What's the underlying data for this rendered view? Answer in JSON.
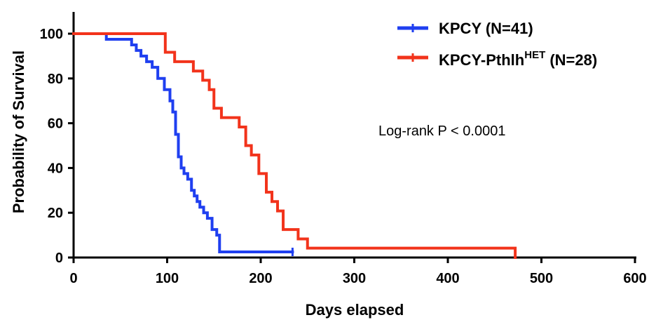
{
  "chart_data": {
    "type": "line",
    "subtype": "kaplan-meier-step",
    "title": "",
    "xlabel": "Days elapsed",
    "ylabel": "Probability of Survival",
    "xlim": [
      0,
      600
    ],
    "ylim": [
      0,
      110
    ],
    "xticks": [
      0,
      100,
      200,
      300,
      400,
      500,
      600
    ],
    "yticks": [
      0,
      20,
      40,
      60,
      80,
      100
    ],
    "grid": false,
    "legend_position": "top-right",
    "annotation": "Log-rank P < 0.0001",
    "series": [
      {
        "name": "KPCY (N=41)",
        "legend_main": "KPCY (N=41)",
        "color": "#1f3ff0",
        "x": [
          0,
          35,
          62,
          67,
          72,
          78,
          84,
          90,
          97,
          103,
          106,
          109,
          112,
          115,
          118,
          122,
          126,
          129,
          132,
          135,
          139,
          143,
          148,
          153,
          156,
          234
        ],
        "y": [
          100,
          97.5,
          95,
          92.5,
          90,
          87.5,
          85,
          80,
          75,
          70,
          65,
          55,
          45,
          40,
          37.5,
          35,
          30,
          27.5,
          25,
          22.5,
          20,
          17.5,
          12.5,
          10,
          2.5,
          2.5
        ]
      },
      {
        "name": "KPCY-Pthlh HET (N=28)",
        "legend_main": "KPCY-Pthlh",
        "legend_sup": "HET",
        "legend_tail": " (N=28)",
        "color": "#f2331b",
        "x": [
          0,
          98,
          108,
          128,
          138,
          145,
          150,
          158,
          177,
          184,
          190,
          198,
          206,
          212,
          218,
          224,
          240,
          250,
          472
        ],
        "y": [
          100,
          91.7,
          87.5,
          83.3,
          79.2,
          75,
          66.7,
          62.5,
          58.3,
          50,
          45.8,
          37.5,
          29.2,
          25,
          20.8,
          12.5,
          8.3,
          4.2,
          0
        ]
      }
    ]
  }
}
